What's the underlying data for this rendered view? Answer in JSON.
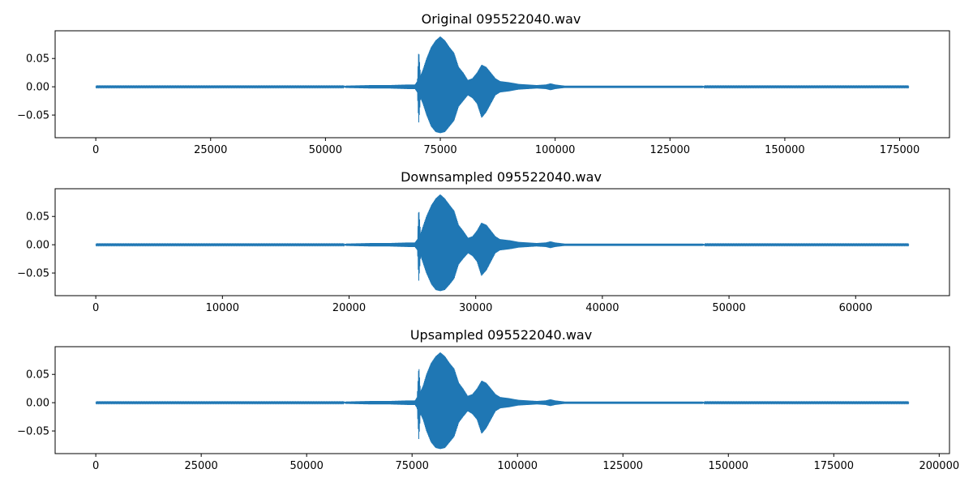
{
  "figure": {
    "background": "#ffffff",
    "line_color": "#1f77b4"
  },
  "chart_data": [
    {
      "type": "line",
      "title": "Original 095522040.wav",
      "xlabel": "",
      "ylabel": "",
      "xlim": [
        -8850,
        185850
      ],
      "ylim": [
        -0.09,
        0.099
      ],
      "xticks": [
        0,
        25000,
        50000,
        75000,
        100000,
        125000,
        150000,
        175000
      ],
      "xtick_labels": [
        "0",
        "25000",
        "50000",
        "75000",
        "100000",
        "125000",
        "150000",
        "175000"
      ],
      "yticks": [
        0.05,
        0.0,
        -0.05
      ],
      "ytick_labels": [
        "0.05",
        "0.00",
        "−0.05"
      ],
      "grid": false,
      "series": [
        {
          "color": "#1f77b4",
          "x_extent": [
            0,
            177000
          ],
          "envelope": {
            "x": [
              0,
              54000,
              54500,
              60000,
              64000,
              68000,
              69500,
              70000,
              70300,
              70700,
              71200,
              72000,
              73000,
              74000,
              75000,
              76000,
              77000,
              78000,
              79000,
              80000,
              81000,
              82000,
              83000,
              84000,
              85000,
              86000,
              87000,
              88000,
              90000,
              92000,
              94000,
              96000,
              98000,
              99000,
              100000,
              102000,
              104000,
              110000,
              120000,
              132000,
              132500,
              177000
            ],
            "upper": [
              0.0008,
              0.0008,
              0.002,
              0.003,
              0.003,
              0.004,
              0.004,
              0.01,
              0.066,
              0.02,
              0.03,
              0.05,
              0.07,
              0.082,
              0.089,
              0.082,
              0.07,
              0.06,
              0.035,
              0.025,
              0.012,
              0.015,
              0.025,
              0.039,
              0.035,
              0.025,
              0.015,
              0.01,
              0.008,
              0.005,
              0.004,
              0.003,
              0.004,
              0.006,
              0.004,
              0.002,
              0.002,
              0.002,
              0.002,
              0.002,
              0.0008,
              0.0008
            ],
            "lower": [
              -0.0008,
              -0.0008,
              -0.002,
              -0.003,
              -0.003,
              -0.004,
              -0.004,
              -0.01,
              -0.065,
              -0.02,
              -0.03,
              -0.05,
              -0.07,
              -0.08,
              -0.082,
              -0.08,
              -0.07,
              -0.06,
              -0.035,
              -0.025,
              -0.015,
              -0.02,
              -0.03,
              -0.055,
              -0.045,
              -0.03,
              -0.015,
              -0.01,
              -0.008,
              -0.005,
              -0.004,
              -0.003,
              -0.004,
              -0.006,
              -0.004,
              -0.002,
              -0.002,
              -0.002,
              -0.002,
              -0.002,
              -0.0008,
              -0.0008
            ]
          }
        }
      ]
    },
    {
      "type": "line",
      "title": "Downsampled 095522040.wav",
      "xlabel": "",
      "ylabel": "",
      "xlim": [
        -3210,
        67410
      ],
      "ylim": [
        -0.09,
        0.099
      ],
      "xticks": [
        0,
        10000,
        20000,
        30000,
        40000,
        50000,
        60000
      ],
      "xtick_labels": [
        "0",
        "10000",
        "20000",
        "30000",
        "40000",
        "50000",
        "60000"
      ],
      "yticks": [
        0.05,
        0.0,
        -0.05
      ],
      "ytick_labels": [
        "0.05",
        "0.00",
        "−0.05"
      ],
      "grid": false,
      "series": [
        {
          "color": "#1f77b4",
          "x_extent": [
            0,
            64200
          ],
          "envelope": {
            "x": [
              0,
              19600,
              19800,
              21800,
              23200,
              24700,
              25200,
              25400,
              25500,
              25650,
              25800,
              26100,
              26500,
              26850,
              27200,
              27550,
              27950,
              28300,
              28650,
              29000,
              29400,
              29750,
              30100,
              30450,
              30850,
              31200,
              31550,
              31900,
              32650,
              33400,
              34100,
              34800,
              35550,
              35900,
              36250,
              37000,
              37750,
              39900,
              43550,
              47900,
              48100,
              64200
            ],
            "upper": [
              0.0008,
              0.0008,
              0.002,
              0.003,
              0.003,
              0.004,
              0.004,
              0.01,
              0.066,
              0.02,
              0.03,
              0.05,
              0.07,
              0.082,
              0.089,
              0.082,
              0.07,
              0.06,
              0.035,
              0.025,
              0.012,
              0.015,
              0.025,
              0.039,
              0.035,
              0.025,
              0.015,
              0.01,
              0.008,
              0.005,
              0.004,
              0.003,
              0.004,
              0.006,
              0.004,
              0.002,
              0.002,
              0.002,
              0.002,
              0.002,
              0.0008,
              0.0008
            ],
            "lower": [
              -0.0008,
              -0.0008,
              -0.002,
              -0.003,
              -0.003,
              -0.004,
              -0.004,
              -0.01,
              -0.065,
              -0.02,
              -0.03,
              -0.05,
              -0.07,
              -0.08,
              -0.082,
              -0.08,
              -0.07,
              -0.06,
              -0.035,
              -0.025,
              -0.015,
              -0.02,
              -0.03,
              -0.055,
              -0.045,
              -0.03,
              -0.015,
              -0.01,
              -0.008,
              -0.005,
              -0.004,
              -0.003,
              -0.004,
              -0.006,
              -0.004,
              -0.002,
              -0.002,
              -0.002,
              -0.002,
              -0.002,
              -0.0008,
              -0.0008
            ]
          }
        }
      ]
    },
    {
      "type": "line",
      "title": "Upsampled 095522040.wav",
      "xlabel": "",
      "ylabel": "",
      "xlim": [
        -9640,
        202440
      ],
      "ylim": [
        -0.09,
        0.099
      ],
      "xticks": [
        0,
        25000,
        50000,
        75000,
        100000,
        125000,
        150000,
        175000,
        200000
      ],
      "xtick_labels": [
        "0",
        "25000",
        "50000",
        "75000",
        "100000",
        "125000",
        "150000",
        "175000",
        "200000"
      ],
      "yticks": [
        0.05,
        0.0,
        -0.05
      ],
      "ytick_labels": [
        "0.05",
        "0.00",
        "−0.05"
      ],
      "grid": false,
      "series": [
        {
          "color": "#1f77b4",
          "x_extent": [
            0,
            192800
          ],
          "envelope": {
            "x": [
              0,
              58800,
              59400,
              65400,
              69700,
              74100,
              75700,
              76200,
              76600,
              77000,
              77600,
              78400,
              79500,
              80600,
              81700,
              82800,
              83900,
              85000,
              86100,
              87100,
              88200,
              89300,
              90400,
              91500,
              92600,
              93700,
              94800,
              95900,
              98000,
              100200,
              102400,
              104600,
              106700,
              107800,
              108900,
              111100,
              113300,
              119800,
              130700,
              143800,
              144300,
              192800
            ],
            "upper": [
              0.0008,
              0.0008,
              0.002,
              0.003,
              0.003,
              0.004,
              0.004,
              0.01,
              0.066,
              0.02,
              0.03,
              0.05,
              0.07,
              0.082,
              0.089,
              0.082,
              0.07,
              0.06,
              0.035,
              0.025,
              0.012,
              0.015,
              0.025,
              0.039,
              0.035,
              0.025,
              0.015,
              0.01,
              0.008,
              0.005,
              0.004,
              0.003,
              0.004,
              0.006,
              0.004,
              0.002,
              0.002,
              0.002,
              0.002,
              0.002,
              0.0008,
              0.0008
            ],
            "lower": [
              -0.0008,
              -0.0008,
              -0.002,
              -0.003,
              -0.003,
              -0.004,
              -0.004,
              -0.01,
              -0.065,
              -0.02,
              -0.03,
              -0.05,
              -0.07,
              -0.08,
              -0.082,
              -0.08,
              -0.07,
              -0.06,
              -0.035,
              -0.025,
              -0.015,
              -0.02,
              -0.03,
              -0.055,
              -0.045,
              -0.03,
              -0.015,
              -0.01,
              -0.008,
              -0.005,
              -0.004,
              -0.003,
              -0.004,
              -0.006,
              -0.004,
              -0.002,
              -0.002,
              -0.002,
              -0.002,
              -0.002,
              -0.0008,
              -0.0008
            ]
          }
        }
      ]
    }
  ]
}
